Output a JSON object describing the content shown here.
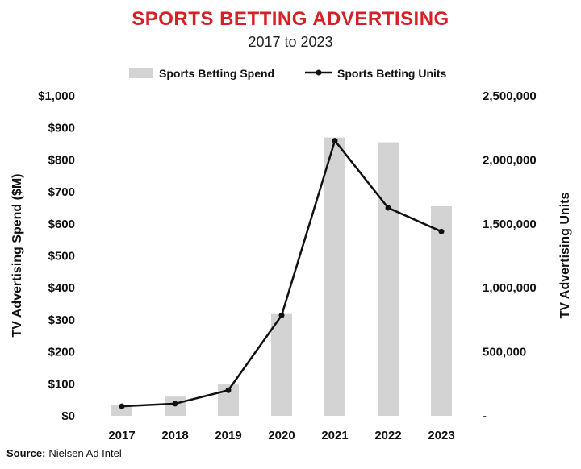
{
  "chart_data": {
    "type": "bar",
    "title": "SPORTS BETTING ADVERTISING",
    "subtitle": "2017 to 2023",
    "categories": [
      "2017",
      "2018",
      "2019",
      "2020",
      "2021",
      "2022",
      "2023"
    ],
    "series": [
      {
        "name": "Sports Betting Spend",
        "type": "bar",
        "axis": "left",
        "values": [
          35,
          60,
          98,
          318,
          870,
          855,
          655
        ]
      },
      {
        "name": "Sports Betting Units",
        "type": "line",
        "axis": "right",
        "values": [
          75000,
          95000,
          200000,
          785000,
          2150000,
          1625000,
          1440000
        ]
      }
    ],
    "ylabel": "TV Advertising Spend ($M)",
    "y2label": "TV Advertising Units",
    "ylim": [
      0,
      1000
    ],
    "y2lim": [
      0,
      2500000
    ],
    "yticks": [
      "$0",
      "$100",
      "$200",
      "$300",
      "$400",
      "$500",
      "$600",
      "$700",
      "$800",
      "$900",
      "$1,000"
    ],
    "y2ticks": [
      "-",
      "500,000",
      "1,000,000",
      "1,500,000",
      "2,000,000",
      "2,500,000"
    ],
    "legend_position": "top",
    "grid": false,
    "colors": {
      "title": "#d71f26",
      "bar": "#d3d3d3",
      "line": "#111111"
    }
  },
  "source": {
    "label": "Source:",
    "text": "Nielsen Ad Intel"
  }
}
